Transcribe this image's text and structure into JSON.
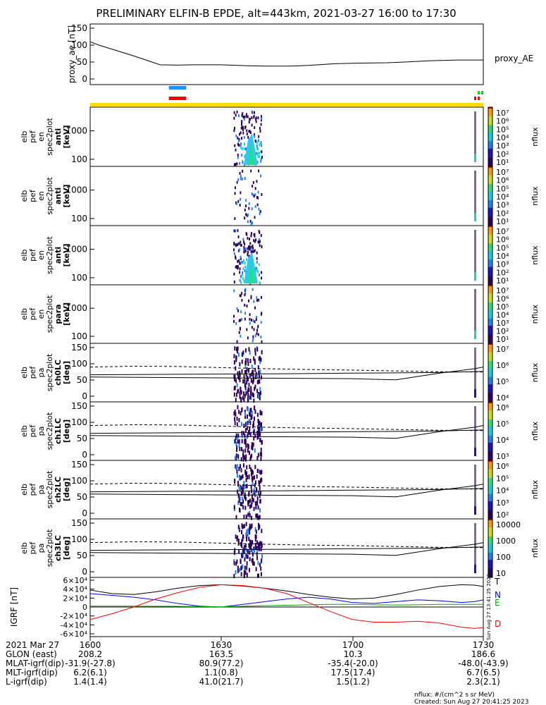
{
  "title": "PRELIMINARY ELFIN-B EPDE, alt=443km, 2021-03-27 16:00 to 17:30",
  "chart_data": [
    {
      "type": "line",
      "ylabel": "proxy_ae [nT]",
      "yticks": [
        "150",
        "100",
        "50",
        "0"
      ],
      "ylim": [
        0,
        150
      ],
      "legend": "proxy_AE",
      "x": [
        0,
        2,
        5,
        10,
        16,
        20,
        24,
        30,
        36,
        40,
        46,
        50,
        56,
        62,
        68,
        72,
        78,
        84,
        90
      ],
      "values": [
        110,
        100,
        88,
        68,
        42,
        41,
        42,
        42,
        39,
        38,
        38,
        40,
        45,
        47,
        48,
        50,
        54,
        56,
        56
      ]
    },
    {
      "type": "heatmap",
      "ylabel": [
        "elb",
        "pef",
        "en",
        "spec2plot",
        "anti",
        "[keV]"
      ],
      "yticks": [
        "1000",
        "100"
      ],
      "cbar": [
        "10⁷",
        "10⁶",
        "10⁵",
        "10⁴",
        "10³",
        "10²",
        "10¹"
      ],
      "cbar_label": "nflux"
    },
    {
      "type": "heatmap",
      "ylabel": [
        "elb",
        "pef",
        "en",
        "spec2plot",
        "anti",
        "[keV]"
      ],
      "yticks": [
        "1000",
        "100"
      ],
      "cbar": [
        "10⁷",
        "10⁶",
        "10⁵",
        "10⁴",
        "10³",
        "10²",
        "10¹"
      ],
      "cbar_label": "nflux"
    },
    {
      "type": "heatmap",
      "ylabel": [
        "elb",
        "pef",
        "en",
        "spec2plot",
        "anti",
        "[keV]"
      ],
      "yticks": [
        "1000",
        "100"
      ],
      "cbar": [
        "10⁷",
        "10⁶",
        "10⁵",
        "10⁴",
        "10³",
        "10²",
        "10¹"
      ],
      "cbar_label": "nflux"
    },
    {
      "type": "heatmap",
      "ylabel": [
        "elb",
        "pef",
        "en",
        "spec2plot",
        "para",
        "[keV]"
      ],
      "yticks": [
        "1000",
        "100"
      ],
      "cbar": [
        "10⁷",
        "10⁶",
        "10⁵",
        "10⁴",
        "10³",
        "10²",
        "10¹"
      ],
      "cbar_label": "nflux"
    },
    {
      "type": "heatmap",
      "ylabel": [
        "elb",
        "pef",
        "pa",
        "spec2plot",
        "ch0LC",
        "[deg]"
      ],
      "yticks": [
        "150",
        "100",
        "50",
        "0"
      ],
      "ylim": [
        0,
        180
      ],
      "cbar": [
        "10⁷",
        "10⁶",
        "10⁵",
        "10⁴"
      ],
      "cbar_label": "nflux"
    },
    {
      "type": "heatmap",
      "ylabel": [
        "elb",
        "pef",
        "pa",
        "spec2plot",
        "ch1LC",
        "[deg]"
      ],
      "yticks": [
        "150",
        "100",
        "50",
        "0"
      ],
      "ylim": [
        0,
        180
      ],
      "cbar": [
        "10⁶",
        "10⁵",
        "10⁴",
        "10³"
      ],
      "cbar_label": "nflux"
    },
    {
      "type": "heatmap",
      "ylabel": [
        "elb",
        "pef",
        "pa",
        "spec2plot",
        "ch2LC",
        "[deg]"
      ],
      "yticks": [
        "150",
        "100",
        "50",
        "0"
      ],
      "ylim": [
        0,
        180
      ],
      "cbar": [
        "10⁶",
        "10⁵",
        "10⁴",
        "10³",
        "10²"
      ],
      "cbar_label": "nflux"
    },
    {
      "type": "heatmap",
      "ylabel": [
        "elb",
        "pef",
        "pa",
        "spec2plot",
        "ch3LC",
        "[deg]"
      ],
      "yticks": [
        "150",
        "100",
        "50",
        "0"
      ],
      "ylim": [
        0,
        180
      ],
      "cbar": [
        "10000",
        "1000",
        "100",
        "10"
      ],
      "cbar_label": "nflux"
    },
    {
      "type": "line",
      "ylabel": "IGRF [nT]",
      "yticks": [
        "6×10⁴",
        "4×10⁴",
        "2×10⁴",
        "0",
        "-2×10⁴",
        "-4×10⁴",
        "-6×10⁴"
      ],
      "ylim": [
        -60000,
        60000
      ],
      "x": [
        0,
        5,
        10,
        15,
        20,
        25,
        30,
        35,
        40,
        45,
        50,
        55,
        60,
        65,
        70,
        75,
        80,
        85,
        88,
        90
      ],
      "series": [
        {
          "name": "T",
          "color": "#000000",
          "values": [
            38000,
            30000,
            28000,
            34000,
            42000,
            48000,
            50000,
            47000,
            42000,
            36000,
            28000,
            22000,
            18000,
            20000,
            28000,
            38000,
            46000,
            50000,
            49000,
            46000
          ]
        },
        {
          "name": "N",
          "color": "#0000ff",
          "values": [
            30000,
            26000,
            22000,
            16000,
            8000,
            2000,
            0,
            6000,
            12000,
            18000,
            22000,
            18000,
            10000,
            8000,
            12000,
            16000,
            14000,
            10000,
            12000,
            16000
          ]
        },
        {
          "name": "E",
          "color": "#00aa00",
          "values": [
            2000,
            2000,
            2000,
            1500,
            1500,
            1000,
            500,
            1500,
            3000,
            4000,
            5000,
            6000,
            6000,
            5000,
            4500,
            5000,
            6000,
            6000,
            6000,
            6000
          ]
        },
        {
          "name": "D",
          "color": "#ff0000",
          "values": [
            -28000,
            -15000,
            0,
            18000,
            32000,
            44000,
            50000,
            48000,
            42000,
            30000,
            10000,
            -10000,
            -28000,
            -34000,
            -34000,
            -32000,
            -36000,
            -45000,
            -48000,
            -46000
          ]
        }
      ]
    }
  ],
  "bars": {
    "colors": [
      "#ffdd00",
      "#ff0000",
      "#1e90ff",
      "#00dd00"
    ]
  },
  "annotations": {
    "ephem_side": "Sun Aug 27 13:41:25 2023"
  },
  "ephemeris": {
    "rows": [
      "2021 Mar 27",
      "GLON (east)",
      "MLAT-igrf(dip)",
      "MLT-igrf(dip)",
      "L-igrf(dip)"
    ],
    "columns": [
      {
        "label": "1600",
        "values": [
          "208.2",
          "-31.9(-27.8)",
          "6.2(6.1)",
          "1.4(1.4)"
        ]
      },
      {
        "label": "1630",
        "values": [
          "163.5",
          "80.9(77.2)",
          "1.1(0.8)",
          "41.0(21.7)"
        ]
      },
      {
        "label": "1700",
        "values": [
          "10.3",
          "-35.4(-20.0)",
          "17.5(17.4)",
          "1.5(1.2)"
        ]
      },
      {
        "label": "1730",
        "values": [
          "186.6",
          "-48.0(-43.9)",
          "6.7(6.5)",
          "2.3(2.1)"
        ]
      }
    ]
  },
  "footer": {
    "units": "nflux: #/(cm^2 s sr MeV)",
    "created": "Created: Sun Aug 27 20:41:25 2023"
  }
}
